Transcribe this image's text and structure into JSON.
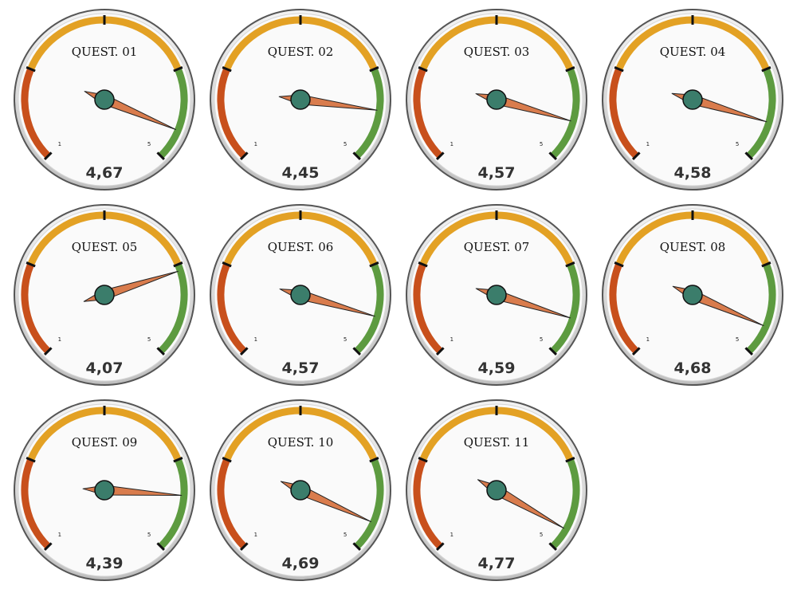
{
  "chart_data": {
    "type": "gauge",
    "scale": {
      "min": 1,
      "max": 5
    },
    "min_label": "1",
    "max_label": "5",
    "zones": [
      {
        "name": "low",
        "from": 1,
        "to": 2,
        "color": "#c8501c"
      },
      {
        "name": "mid",
        "from": 2,
        "to": 4,
        "color": "#e3a124"
      },
      {
        "name": "high",
        "from": 4,
        "to": 5,
        "color": "#5d9b40"
      }
    ],
    "colors": {
      "needle": "#d97c4d",
      "hub": "#3b7d6b",
      "face": "#fafafa",
      "rim": "#555555"
    },
    "gauges": [
      {
        "title": "QUEST. 01",
        "value": 4.67,
        "value_label": "4,67"
      },
      {
        "title": "QUEST. 02",
        "value": 4.45,
        "value_label": "4,45"
      },
      {
        "title": "QUEST. 03",
        "value": 4.57,
        "value_label": "4,57"
      },
      {
        "title": "QUEST. 04",
        "value": 4.58,
        "value_label": "4,58"
      },
      {
        "title": "QUEST. 05",
        "value": 4.07,
        "value_label": "4,07"
      },
      {
        "title": "QUEST. 06",
        "value": 4.57,
        "value_label": "4,57"
      },
      {
        "title": "QUEST. 07",
        "value": 4.59,
        "value_label": "4,59"
      },
      {
        "title": "QUEST. 08",
        "value": 4.68,
        "value_label": "4,68"
      },
      {
        "title": "QUEST. 09",
        "value": 4.39,
        "value_label": "4,39"
      },
      {
        "title": "QUEST. 10",
        "value": 4.69,
        "value_label": "4,69"
      },
      {
        "title": "QUEST. 11",
        "value": 4.77,
        "value_label": "4,77"
      }
    ]
  }
}
